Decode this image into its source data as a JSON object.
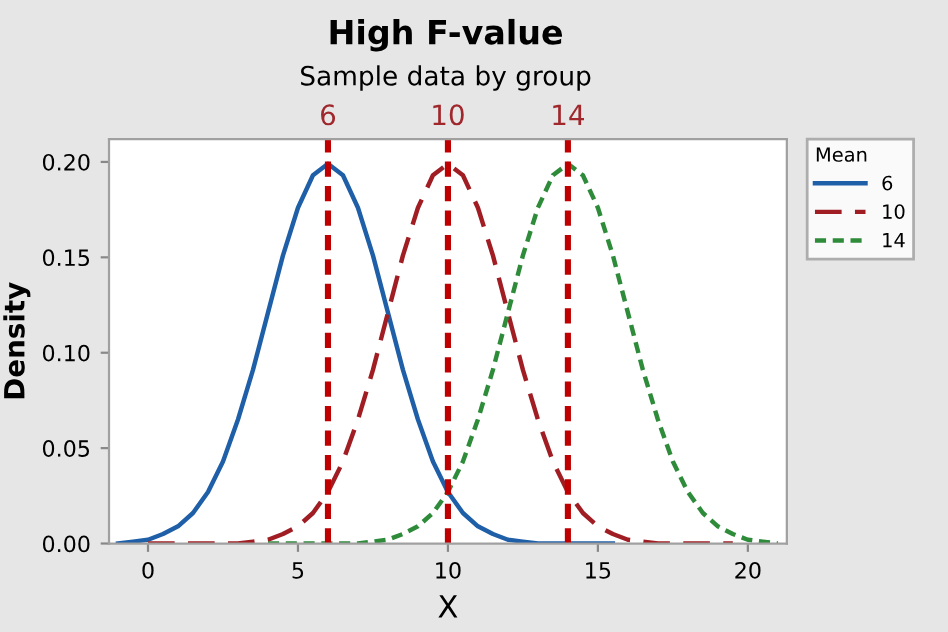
{
  "chart_data": {
    "type": "line",
    "title": "High F-value",
    "subtitle": "Sample data by group",
    "xlabel": "X",
    "ylabel": "Density",
    "legend_title": "Mean",
    "x": [
      -1,
      -0.5,
      0,
      0.5,
      1,
      1.5,
      2,
      2.5,
      3,
      3.5,
      4,
      4.5,
      5,
      5.5,
      6,
      6.5,
      7,
      7.5,
      8,
      8.5,
      9,
      9.5,
      10,
      10.5,
      11,
      11.5,
      12,
      12.5,
      13,
      13.5,
      14,
      14.5,
      15,
      15.5,
      16,
      16.5,
      17,
      17.5,
      18,
      18.5,
      19,
      19.5,
      20,
      20.5,
      21
    ],
    "series": [
      {
        "name": "6",
        "color": "#1f5fa8",
        "line_style": "solid",
        "values": [
          0,
          0.001,
          0.002,
          0.005,
          0.009,
          0.016,
          0.027,
          0.043,
          0.065,
          0.091,
          0.121,
          0.151,
          0.176,
          0.193,
          0.199,
          0.193,
          0.176,
          0.151,
          0.121,
          0.091,
          0.065,
          0.043,
          0.027,
          0.016,
          0.009,
          0.005,
          0.002,
          0.001,
          0,
          0,
          0,
          0,
          0,
          0,
          null,
          null,
          null,
          null,
          null,
          null,
          null,
          null,
          null,
          null,
          null
        ]
      },
      {
        "name": "10",
        "color": "#a01e23",
        "line_style": "dashed",
        "values": [
          null,
          null,
          0,
          0,
          0,
          0,
          0,
          0,
          0,
          0.001,
          0.002,
          0.005,
          0.009,
          0.016,
          0.027,
          0.043,
          0.065,
          0.091,
          0.121,
          0.151,
          0.176,
          0.193,
          0.199,
          0.193,
          0.176,
          0.151,
          0.121,
          0.091,
          0.065,
          0.043,
          0.027,
          0.016,
          0.009,
          0.005,
          0.002,
          0.001,
          0,
          0,
          0,
          0,
          0,
          0,
          null,
          null,
          null
        ]
      },
      {
        "name": "14",
        "color": "#2e8b3a",
        "line_style": "dotted",
        "values": [
          null,
          null,
          null,
          null,
          null,
          null,
          null,
          null,
          null,
          null,
          0,
          0,
          0,
          0,
          0,
          0,
          0,
          0.001,
          0.002,
          0.005,
          0.009,
          0.016,
          0.027,
          0.043,
          0.065,
          0.091,
          0.121,
          0.151,
          0.176,
          0.193,
          0.199,
          0.193,
          0.176,
          0.151,
          0.121,
          0.091,
          0.065,
          0.043,
          0.027,
          0.016,
          0.009,
          0.005,
          0.002,
          0.001,
          0
        ]
      }
    ],
    "ref_lines": [
      {
        "axis": "x",
        "value": 6,
        "label": "6",
        "color": "#c00000",
        "line_style": "dotted"
      },
      {
        "axis": "x",
        "value": 10,
        "label": "10",
        "color": "#c00000",
        "line_style": "dotted"
      },
      {
        "axis": "x",
        "value": 14,
        "label": "14",
        "color": "#c00000",
        "line_style": "dotted"
      }
    ],
    "xlim": [
      -1.3,
      21.3
    ],
    "xticks": [
      0,
      5,
      10,
      15,
      20
    ],
    "ylim": [
      0,
      0.212
    ],
    "yticks": [
      {
        "value": 0,
        "label": "0.00"
      },
      {
        "value": 0.05,
        "label": "0.05"
      },
      {
        "value": 0.1,
        "label": "0.10"
      },
      {
        "value": 0.15,
        "label": "0.15"
      },
      {
        "value": 0.2,
        "label": "0.20"
      }
    ],
    "grid": false,
    "legend": "right"
  }
}
